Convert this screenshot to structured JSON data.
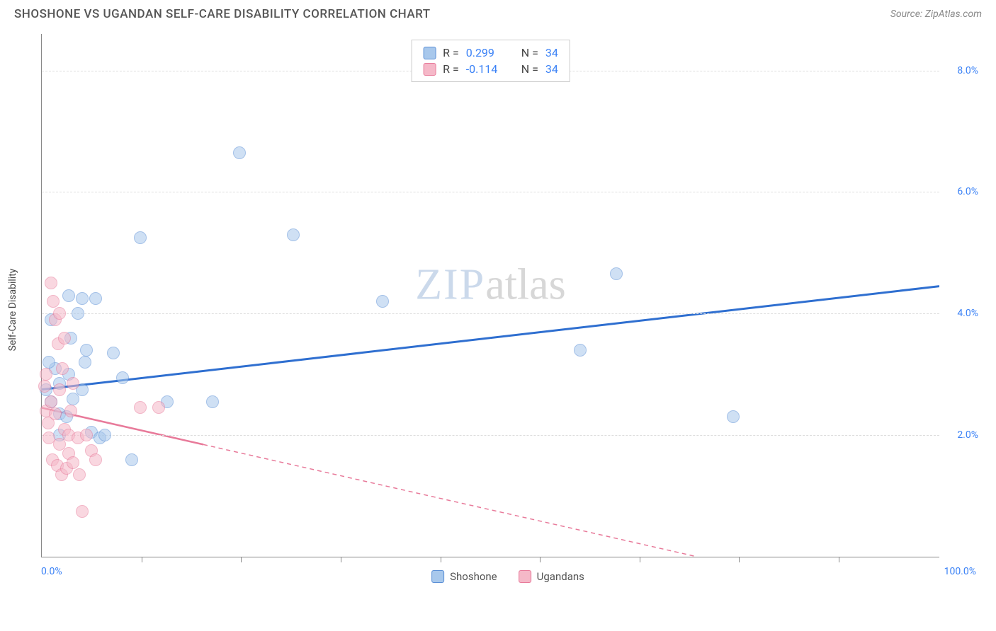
{
  "title": "SHOSHONE VS UGANDAN SELF-CARE DISABILITY CORRELATION CHART",
  "source": "Source: ZipAtlas.com",
  "ylabel": "Self-Care Disability",
  "watermark": {
    "part1": "ZIP",
    "part2": "atlas"
  },
  "chart": {
    "type": "scatter",
    "xlim": [
      0,
      100
    ],
    "ylim": [
      0,
      8.6
    ],
    "x_min_label": "0.0%",
    "x_max_label": "100.0%",
    "y_ticks": [
      2.0,
      4.0,
      6.0,
      8.0
    ],
    "y_tick_labels": [
      "2.0%",
      "4.0%",
      "6.0%",
      "8.0%"
    ],
    "x_tick_positions": [
      11.1,
      22.2,
      33.3,
      44.4,
      55.5,
      66.6,
      77.7,
      88.8
    ],
    "grid_color": "#dddddd",
    "axis_color": "#888888",
    "background_color": "#ffffff",
    "point_radius": 9,
    "point_opacity": 0.55,
    "series": [
      {
        "name": "Shoshone",
        "color_fill": "#a8c8ec",
        "color_stroke": "#5b8fd6",
        "r_value": "0.299",
        "n_value": "34",
        "trend": {
          "x1": 0,
          "y1": 2.75,
          "x2": 100,
          "y2": 4.45,
          "color": "#2f6fd0",
          "width": 3,
          "dash": "none",
          "solid_until_x": 100
        },
        "points": [
          [
            0.5,
            2.75
          ],
          [
            1,
            3.9
          ],
          [
            1,
            2.55
          ],
          [
            1.5,
            3.1
          ],
          [
            2,
            2.85
          ],
          [
            2,
            2.0
          ],
          [
            2,
            2.35
          ],
          [
            3,
            4.3
          ],
          [
            3,
            3.0
          ],
          [
            3.5,
            2.6
          ],
          [
            4,
            4.0
          ],
          [
            4.5,
            4.25
          ],
          [
            4.5,
            2.75
          ],
          [
            5,
            3.4
          ],
          [
            5.5,
            2.05
          ],
          [
            6,
            4.25
          ],
          [
            6.5,
            1.95
          ],
          [
            7,
            2.0
          ],
          [
            8,
            3.35
          ],
          [
            9,
            2.95
          ],
          [
            10,
            1.6
          ],
          [
            11,
            5.25
          ],
          [
            14,
            2.55
          ],
          [
            19,
            2.55
          ],
          [
            22,
            6.65
          ],
          [
            28,
            5.3
          ],
          [
            38,
            4.2
          ],
          [
            60,
            3.4
          ],
          [
            64,
            4.65
          ],
          [
            77,
            2.3
          ],
          [
            2.8,
            2.3
          ],
          [
            3.2,
            3.6
          ],
          [
            4.8,
            3.2
          ],
          [
            0.8,
            3.2
          ]
        ]
      },
      {
        "name": "Ugandans",
        "color_fill": "#f5b8c8",
        "color_stroke": "#e87a9a",
        "r_value": "-0.114",
        "n_value": "34",
        "trend": {
          "x1": 0,
          "y1": 2.45,
          "x2": 73,
          "y2": 0,
          "color": "#e87a9a",
          "width": 2.5,
          "dash": "6,5",
          "solid_until_x": 18
        },
        "points": [
          [
            0.3,
            2.8
          ],
          [
            0.5,
            2.4
          ],
          [
            0.5,
            3.0
          ],
          [
            0.7,
            2.2
          ],
          [
            0.8,
            1.95
          ],
          [
            1,
            2.55
          ],
          [
            1,
            4.5
          ],
          [
            1.2,
            1.6
          ],
          [
            1.3,
            4.2
          ],
          [
            1.5,
            2.35
          ],
          [
            1.5,
            3.9
          ],
          [
            1.7,
            1.5
          ],
          [
            1.8,
            3.5
          ],
          [
            2,
            2.75
          ],
          [
            2,
            1.85
          ],
          [
            2.2,
            1.35
          ],
          [
            2.3,
            3.1
          ],
          [
            2.5,
            2.1
          ],
          [
            2.5,
            3.6
          ],
          [
            2.8,
            1.45
          ],
          [
            3,
            2.0
          ],
          [
            3,
            1.7
          ],
          [
            3.2,
            2.4
          ],
          [
            3.5,
            1.55
          ],
          [
            3.5,
            2.85
          ],
          [
            4,
            1.95
          ],
          [
            4.2,
            1.35
          ],
          [
            4.5,
            0.75
          ],
          [
            5,
            2.0
          ],
          [
            5.5,
            1.75
          ],
          [
            6,
            1.6
          ],
          [
            11,
            2.45
          ],
          [
            13,
            2.45
          ],
          [
            2.0,
            4.0
          ]
        ]
      }
    ]
  },
  "legend": {
    "items": [
      {
        "label": "Shoshone",
        "fill": "#a8c8ec",
        "stroke": "#5b8fd6"
      },
      {
        "label": "Ugandans",
        "fill": "#f5b8c8",
        "stroke": "#e87a9a"
      }
    ]
  },
  "stat_value_color": "#3b82f6"
}
